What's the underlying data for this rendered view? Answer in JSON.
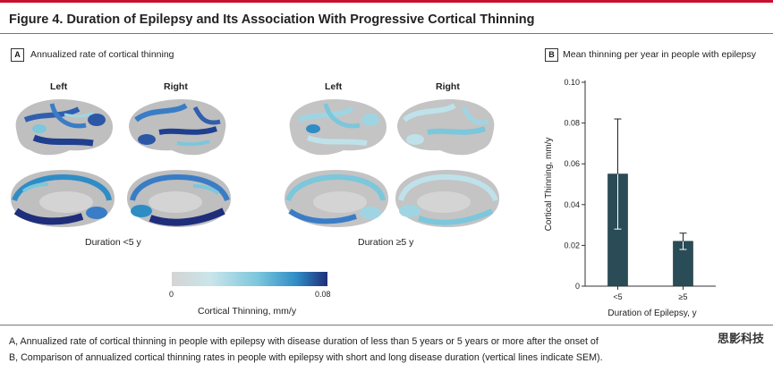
{
  "figure": {
    "title": "Figure 4. Duration of Epilepsy and Its Association With Progressive Cortical Thinning",
    "accent_color": "#c8102e"
  },
  "panel_a": {
    "tag": "A",
    "title": "Annualized rate of cortical thinning",
    "groups": [
      {
        "left_label": "Left",
        "right_label": "Right",
        "duration_label": "Duration <5 y"
      },
      {
        "left_label": "Left",
        "right_label": "Right",
        "duration_label": "Duration ≥5 y"
      }
    ],
    "colorbar": {
      "min_label": "0",
      "max_label": "0.08",
      "label": "Cortical Thinning, mm/y",
      "colors": [
        "#d4d4d4",
        "#c9e5ea",
        "#7cc7dc",
        "#2f8dc6",
        "#1f2e7a"
      ]
    }
  },
  "panel_b": {
    "tag": "B",
    "title": "Mean thinning per year in people with epilepsy"
  },
  "chart_data": {
    "type": "bar",
    "categories": [
      "<5",
      "≥5"
    ],
    "values": [
      0.055,
      0.022
    ],
    "error": [
      0.027,
      0.004
    ],
    "ylim": [
      0,
      0.1
    ],
    "yticks": [
      "0",
      "0.02",
      "0.04",
      "0.06",
      "0.08",
      "0.10"
    ],
    "xlabel": "Duration of Epilepsy, y",
    "ylabel": "Cortical Thinning, mm/y",
    "bar_color": "#2a4c57",
    "grid": false
  },
  "captions": {
    "a": "A, Annualized rate of cortical thinning in people with epilepsy with disease duration of less than 5 years or 5 years or more after the onset of",
    "b": "B, Comparison of annualized cortical thinning rates in people with epilepsy with short and long disease duration (vertical lines indicate SEM)."
  },
  "watermark": "思影科技"
}
